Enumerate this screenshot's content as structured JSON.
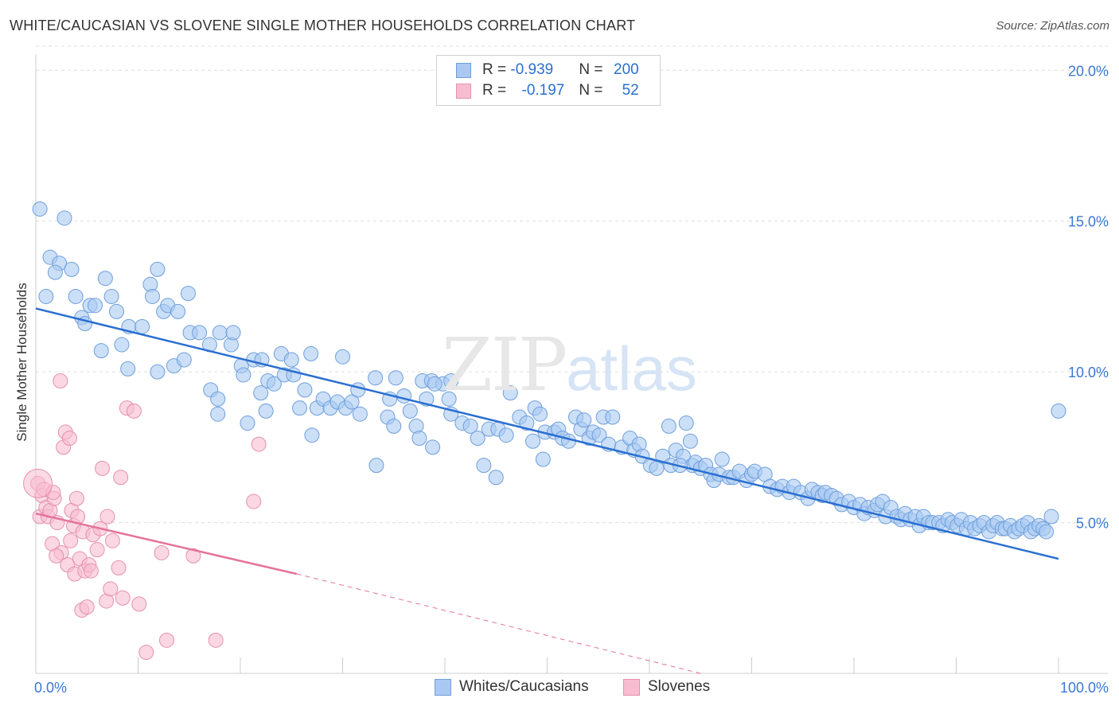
{
  "title": "WHITE/CAUCASIAN VS SLOVENE SINGLE MOTHER HOUSEHOLDS CORRELATION CHART",
  "source": "Source: ZipAtlas.com",
  "watermark": {
    "part1": "ZIP",
    "part2": "atlas"
  },
  "legend": [
    {
      "r_label": "R = ",
      "r_value": "-0.939",
      "n_label": "N = ",
      "n_value": "200",
      "color": "#a9c9f2",
      "border": "#6f9fdc"
    },
    {
      "r_label": "R = ",
      "r_value": "-0.197",
      "n_label": "N = ",
      "n_value": "52",
      "color": "#f7bcd0",
      "border": "#e690ae"
    }
  ],
  "chart_data": {
    "type": "scatter",
    "title": "WHITE/CAUCASIAN VS SLOVENE SINGLE MOTHER HOUSEHOLDS CORRELATION CHART",
    "xlabel": "",
    "ylabel": "Single Mother Households",
    "xlim": [
      0,
      100
    ],
    "ylim": [
      0,
      20.8
    ],
    "x_tick_labels": [
      "0.0%",
      "100.0%"
    ],
    "y_ticks": [
      5,
      10,
      15,
      20
    ],
    "y_tick_labels": [
      "5.0%",
      "10.0%",
      "15.0%",
      "20.0%"
    ],
    "grid": "horizontal dashed",
    "legend_position": "top-center",
    "series": [
      {
        "name": "Whites/Caucasians",
        "color": "#a9c9f2",
        "edge": "#6f9fdc",
        "trend": {
          "x": [
            0,
            100
          ],
          "y": [
            12.1,
            3.8
          ],
          "color": "#2a6fd1"
        },
        "points": [
          [
            0.4,
            15.4
          ],
          [
            2.8,
            15.1
          ],
          [
            1.4,
            13.8
          ],
          [
            2.3,
            13.6
          ],
          [
            1.9,
            13.3
          ],
          [
            3.5,
            13.4
          ],
          [
            1.0,
            12.5
          ],
          [
            3.9,
            12.5
          ],
          [
            6.8,
            13.1
          ],
          [
            7.4,
            12.5
          ],
          [
            11.2,
            12.9
          ],
          [
            11.4,
            12.5
          ],
          [
            11.9,
            13.4
          ],
          [
            14.9,
            12.6
          ],
          [
            5.3,
            12.2
          ],
          [
            5.8,
            12.2
          ],
          [
            4.5,
            11.8
          ],
          [
            4.8,
            11.6
          ],
          [
            7.9,
            12.0
          ],
          [
            9.1,
            11.5
          ],
          [
            10.4,
            11.5
          ],
          [
            12.5,
            12.0
          ],
          [
            12.9,
            12.2
          ],
          [
            13.9,
            12.0
          ],
          [
            6.4,
            10.7
          ],
          [
            8.4,
            10.9
          ],
          [
            9.0,
            10.1
          ],
          [
            11.9,
            10.0
          ],
          [
            13.5,
            10.2
          ],
          [
            14.5,
            10.4
          ],
          [
            15.1,
            11.3
          ],
          [
            16.0,
            11.3
          ],
          [
            17.0,
            10.9
          ],
          [
            18.0,
            11.3
          ],
          [
            19.1,
            10.9
          ],
          [
            19.3,
            11.3
          ],
          [
            20.1,
            10.2
          ],
          [
            21.3,
            10.4
          ],
          [
            22.1,
            10.4
          ],
          [
            24.0,
            10.6
          ],
          [
            25.0,
            10.4
          ],
          [
            26.9,
            10.6
          ],
          [
            30.0,
            10.5
          ],
          [
            17.1,
            9.4
          ],
          [
            17.8,
            9.1
          ],
          [
            20.3,
            9.9
          ],
          [
            22.0,
            9.3
          ],
          [
            22.7,
            9.7
          ],
          [
            23.3,
            9.6
          ],
          [
            24.3,
            9.9
          ],
          [
            25.2,
            9.9
          ],
          [
            26.3,
            9.4
          ],
          [
            27.5,
            8.8
          ],
          [
            28.1,
            9.1
          ],
          [
            28.8,
            8.8
          ],
          [
            29.5,
            9.0
          ],
          [
            30.3,
            8.8
          ],
          [
            30.9,
            9.0
          ],
          [
            31.5,
            9.4
          ],
          [
            31.7,
            8.6
          ],
          [
            33.2,
            9.8
          ],
          [
            34.4,
            8.5
          ],
          [
            34.6,
            9.1
          ],
          [
            35.2,
            9.8
          ],
          [
            36.0,
            9.2
          ],
          [
            36.6,
            8.7
          ],
          [
            37.2,
            8.2
          ],
          [
            37.8,
            9.7
          ],
          [
            38.2,
            9.1
          ],
          [
            38.7,
            9.7
          ],
          [
            39.8,
            9.6
          ],
          [
            40.4,
            9.1
          ],
          [
            40.6,
            9.7
          ],
          [
            17.8,
            8.6
          ],
          [
            20.7,
            8.3
          ],
          [
            22.5,
            8.7
          ],
          [
            25.8,
            8.8
          ],
          [
            27.0,
            7.9
          ],
          [
            33.3,
            6.9
          ],
          [
            35.0,
            8.2
          ],
          [
            37.5,
            7.8
          ],
          [
            38.8,
            7.5
          ],
          [
            39.0,
            9.6
          ],
          [
            40.6,
            8.6
          ],
          [
            41.7,
            8.3
          ],
          [
            42.5,
            8.2
          ],
          [
            43.2,
            7.8
          ],
          [
            43.8,
            6.9
          ],
          [
            44.3,
            8.1
          ],
          [
            45.2,
            8.1
          ],
          [
            46.0,
            7.9
          ],
          [
            46.4,
            9.3
          ],
          [
            47.3,
            8.5
          ],
          [
            48.0,
            8.3
          ],
          [
            48.6,
            7.7
          ],
          [
            48.8,
            8.8
          ],
          [
            49.3,
            8.6
          ],
          [
            49.8,
            8.0
          ],
          [
            50.7,
            8.0
          ],
          [
            51.1,
            8.1
          ],
          [
            51.5,
            7.8
          ],
          [
            52.1,
            7.7
          ],
          [
            52.8,
            8.5
          ],
          [
            53.3,
            8.1
          ],
          [
            53.6,
            8.4
          ],
          [
            54.1,
            7.8
          ],
          [
            54.5,
            8.0
          ],
          [
            55.1,
            7.9
          ],
          [
            55.5,
            8.5
          ],
          [
            56.0,
            7.6
          ],
          [
            56.4,
            8.5
          ],
          [
            57.3,
            7.5
          ],
          [
            58.1,
            7.8
          ],
          [
            58.5,
            7.4
          ],
          [
            59.0,
            7.6
          ],
          [
            59.3,
            7.2
          ],
          [
            60.1,
            6.9
          ],
          [
            60.7,
            6.8
          ],
          [
            61.3,
            7.2
          ],
          [
            62.1,
            6.9
          ],
          [
            62.6,
            7.4
          ],
          [
            63.3,
            7.2
          ],
          [
            63.6,
            8.3
          ],
          [
            64.0,
            7.7
          ],
          [
            64.2,
            6.9
          ],
          [
            64.5,
            7.0
          ],
          [
            65.0,
            6.8
          ],
          [
            65.5,
            6.9
          ],
          [
            66.0,
            6.6
          ],
          [
            66.3,
            6.4
          ],
          [
            66.8,
            6.6
          ],
          [
            67.1,
            7.1
          ],
          [
            67.8,
            6.5
          ],
          [
            68.2,
            6.5
          ],
          [
            68.8,
            6.7
          ],
          [
            69.5,
            6.4
          ],
          [
            70.0,
            6.6
          ],
          [
            70.3,
            6.7
          ],
          [
            71.3,
            6.6
          ],
          [
            71.8,
            6.2
          ],
          [
            72.5,
            6.1
          ],
          [
            73.0,
            6.2
          ],
          [
            73.7,
            6.0
          ],
          [
            74.1,
            6.2
          ],
          [
            74.8,
            6.0
          ],
          [
            75.5,
            5.8
          ],
          [
            75.9,
            6.1
          ],
          [
            76.5,
            6.0
          ],
          [
            76.9,
            5.9
          ],
          [
            77.2,
            6.0
          ],
          [
            77.8,
            5.9
          ],
          [
            78.3,
            5.8
          ],
          [
            78.8,
            5.6
          ],
          [
            79.5,
            5.7
          ],
          [
            80.0,
            5.5
          ],
          [
            80.6,
            5.6
          ],
          [
            81.0,
            5.3
          ],
          [
            81.4,
            5.5
          ],
          [
            82.0,
            5.4
          ],
          [
            82.3,
            5.6
          ],
          [
            82.8,
            5.7
          ],
          [
            83.1,
            5.2
          ],
          [
            83.6,
            5.5
          ],
          [
            84.2,
            5.2
          ],
          [
            84.6,
            5.1
          ],
          [
            85.0,
            5.3
          ],
          [
            85.5,
            5.1
          ],
          [
            86.0,
            5.2
          ],
          [
            86.4,
            4.9
          ],
          [
            86.8,
            5.2
          ],
          [
            87.3,
            5.0
          ],
          [
            87.7,
            5.0
          ],
          [
            88.3,
            5.0
          ],
          [
            88.7,
            4.9
          ],
          [
            89.2,
            5.1
          ],
          [
            89.6,
            5.0
          ],
          [
            90.1,
            4.9
          ],
          [
            90.5,
            5.1
          ],
          [
            91.0,
            4.8
          ],
          [
            91.4,
            5.0
          ],
          [
            91.8,
            4.8
          ],
          [
            92.3,
            4.9
          ],
          [
            92.7,
            5.0
          ],
          [
            93.2,
            4.7
          ],
          [
            93.6,
            4.9
          ],
          [
            94.0,
            5.0
          ],
          [
            94.5,
            4.8
          ],
          [
            94.8,
            4.8
          ],
          [
            95.3,
            4.9
          ],
          [
            95.7,
            4.7
          ],
          [
            96.1,
            4.8
          ],
          [
            96.5,
            4.9
          ],
          [
            97.0,
            5.0
          ],
          [
            97.3,
            4.7
          ],
          [
            97.7,
            4.8
          ],
          [
            98.1,
            4.9
          ],
          [
            98.5,
            4.8
          ],
          [
            98.8,
            4.7
          ],
          [
            99.3,
            5.2
          ],
          [
            63.0,
            6.9
          ],
          [
            61.9,
            8.2
          ],
          [
            49.6,
            7.1
          ],
          [
            45.0,
            6.5
          ],
          [
            100.0,
            8.7
          ]
        ]
      },
      {
        "name": "Slovenes",
        "color": "#f7bcd0",
        "edge": "#e690ae",
        "trend": {
          "x": [
            0,
            25.5
          ],
          "y": [
            5.3,
            3.3
          ],
          "color": "#e4739b",
          "extension": {
            "x": [
              25.5,
              65
            ],
            "y": [
              3.3,
              0.0
            ]
          }
        },
        "points": [
          [
            0.2,
            6.3
          ],
          [
            0.4,
            5.2
          ],
          [
            0.6,
            5.9
          ],
          [
            1.0,
            5.5
          ],
          [
            1.2,
            5.2
          ],
          [
            1.4,
            5.4
          ],
          [
            1.6,
            4.3
          ],
          [
            1.8,
            5.8
          ],
          [
            2.1,
            5.0
          ],
          [
            2.4,
            9.7
          ],
          [
            2.5,
            4.0
          ],
          [
            2.7,
            7.5
          ],
          [
            2.9,
            8.0
          ],
          [
            3.1,
            3.6
          ],
          [
            3.3,
            7.8
          ],
          [
            3.5,
            5.4
          ],
          [
            3.7,
            4.9
          ],
          [
            3.8,
            3.3
          ],
          [
            4.0,
            5.8
          ],
          [
            4.1,
            5.2
          ],
          [
            4.3,
            3.8
          ],
          [
            4.5,
            2.1
          ],
          [
            4.6,
            4.7
          ],
          [
            4.8,
            3.4
          ],
          [
            5.0,
            2.2
          ],
          [
            5.2,
            3.6
          ],
          [
            5.4,
            3.4
          ],
          [
            5.6,
            4.6
          ],
          [
            6.0,
            4.1
          ],
          [
            6.3,
            4.8
          ],
          [
            6.5,
            6.8
          ],
          [
            6.9,
            2.4
          ],
          [
            7.0,
            5.2
          ],
          [
            7.3,
            2.8
          ],
          [
            7.5,
            4.4
          ],
          [
            8.1,
            3.5
          ],
          [
            8.3,
            6.5
          ],
          [
            8.5,
            2.5
          ],
          [
            8.9,
            8.8
          ],
          [
            9.6,
            8.7
          ],
          [
            10.1,
            2.3
          ],
          [
            12.3,
            4.0
          ],
          [
            12.8,
            1.1
          ],
          [
            15.4,
            3.9
          ],
          [
            17.6,
            1.1
          ],
          [
            21.3,
            5.7
          ],
          [
            21.8,
            7.6
          ],
          [
            10.8,
            0.7
          ],
          [
            0.8,
            6.1
          ],
          [
            1.7,
            6.0
          ],
          [
            2.0,
            3.9
          ],
          [
            3.4,
            4.4
          ]
        ]
      }
    ]
  },
  "bottom_legend": [
    "Whites/Caucasians",
    "Slovenes"
  ]
}
